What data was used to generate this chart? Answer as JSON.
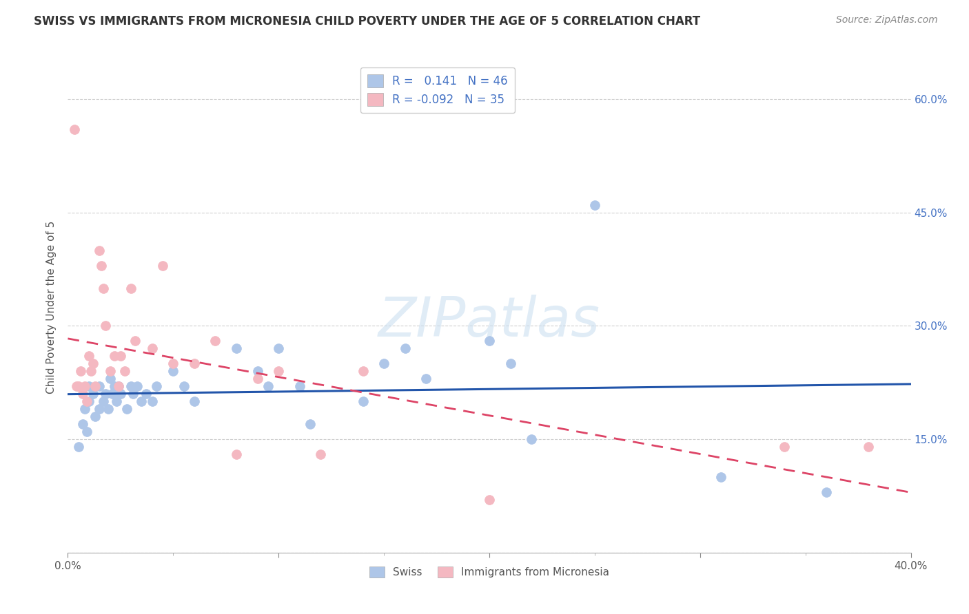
{
  "title": "SWISS VS IMMIGRANTS FROM MICRONESIA CHILD POVERTY UNDER THE AGE OF 5 CORRELATION CHART",
  "source": "Source: ZipAtlas.com",
  "ylabel": "Child Poverty Under the Age of 5",
  "xlim": [
    0.0,
    0.4
  ],
  "ylim": [
    0.0,
    0.65
  ],
  "background_color": "#ffffff",
  "grid_color": "#d0d0d0",
  "watermark_text": "ZIPatlas",
  "swiss_color": "#aec6e8",
  "micronesia_color": "#f4b8c1",
  "swiss_line_color": "#2255aa",
  "micronesia_line_color": "#dd4466",
  "swiss_R": 0.141,
  "swiss_N": 46,
  "micronesia_R": -0.092,
  "micronesia_N": 35,
  "swiss_x": [
    0.005,
    0.007,
    0.008,
    0.009,
    0.01,
    0.01,
    0.012,
    0.013,
    0.015,
    0.015,
    0.017,
    0.018,
    0.019,
    0.02,
    0.021,
    0.022,
    0.023,
    0.024,
    0.025,
    0.028,
    0.03,
    0.031,
    0.033,
    0.035,
    0.037,
    0.04,
    0.042,
    0.05,
    0.055,
    0.06,
    0.08,
    0.09,
    0.095,
    0.1,
    0.11,
    0.115,
    0.14,
    0.15,
    0.16,
    0.17,
    0.2,
    0.21,
    0.22,
    0.25,
    0.31,
    0.36
  ],
  "swiss_y": [
    0.14,
    0.17,
    0.19,
    0.16,
    0.2,
    0.22,
    0.21,
    0.18,
    0.19,
    0.22,
    0.2,
    0.21,
    0.19,
    0.23,
    0.21,
    0.22,
    0.2,
    0.22,
    0.21,
    0.19,
    0.22,
    0.21,
    0.22,
    0.2,
    0.21,
    0.2,
    0.22,
    0.24,
    0.22,
    0.2,
    0.27,
    0.24,
    0.22,
    0.27,
    0.22,
    0.17,
    0.2,
    0.25,
    0.27,
    0.23,
    0.28,
    0.25,
    0.15,
    0.46,
    0.1,
    0.08
  ],
  "micronesia_x": [
    0.003,
    0.004,
    0.005,
    0.006,
    0.007,
    0.008,
    0.009,
    0.01,
    0.011,
    0.012,
    0.013,
    0.015,
    0.016,
    0.017,
    0.018,
    0.02,
    0.022,
    0.024,
    0.025,
    0.027,
    0.03,
    0.032,
    0.04,
    0.045,
    0.05,
    0.06,
    0.07,
    0.08,
    0.09,
    0.1,
    0.12,
    0.14,
    0.2,
    0.34,
    0.38
  ],
  "micronesia_y": [
    0.56,
    0.22,
    0.22,
    0.24,
    0.21,
    0.22,
    0.2,
    0.26,
    0.24,
    0.25,
    0.22,
    0.4,
    0.38,
    0.35,
    0.3,
    0.24,
    0.26,
    0.22,
    0.26,
    0.24,
    0.35,
    0.28,
    0.27,
    0.38,
    0.25,
    0.25,
    0.28,
    0.13,
    0.23,
    0.24,
    0.13,
    0.24,
    0.07,
    0.14,
    0.14
  ]
}
